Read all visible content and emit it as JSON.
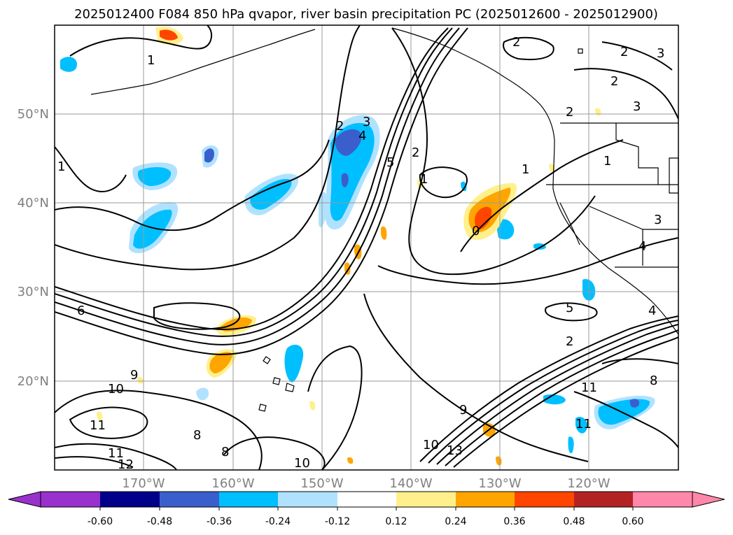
{
  "title": "2025012400 F084 850 hPa qvapor, river basin precipitation PC (2025012600 - 2025012900)",
  "axes": {
    "lon_ticks": [
      "170°W",
      "160°W",
      "150°W",
      "140°W",
      "130°W",
      "120°W"
    ],
    "lat_ticks": [
      "50°N",
      "40°N",
      "30°N",
      "20°N"
    ]
  },
  "colorbar": {
    "ticks": [
      "-0.60",
      "-0.48",
      "-0.36",
      "-0.24",
      "-0.12",
      "0.12",
      "0.24",
      "0.36",
      "0.48",
      "0.60"
    ],
    "colors": {
      "under": "#9932cc",
      "bins": [
        "#9932cc",
        "#00008b",
        "#3a5fcd",
        "#00bfff",
        "#b0e2ff",
        "#ffffff",
        "#fff08c",
        "#ffa500",
        "#ff4500",
        "#b22222",
        "#ff88aa"
      ],
      "over": "#ff88aa"
    }
  },
  "contour_labels": [
    "1",
    "2",
    "2",
    "3",
    "4",
    "5",
    "2",
    "1",
    "1",
    "2",
    "2",
    "2",
    "3",
    "3",
    "1",
    "1",
    "0",
    "4",
    "3",
    "5",
    "2",
    "6",
    "9",
    "10",
    "11",
    "11",
    "12",
    "10",
    "8",
    "8",
    "13",
    "10",
    "9",
    "11",
    "11",
    "8",
    "4"
  ],
  "colors": {
    "contour": "#000000",
    "tick_text": "#808080",
    "grid": "#9a9a9a"
  }
}
